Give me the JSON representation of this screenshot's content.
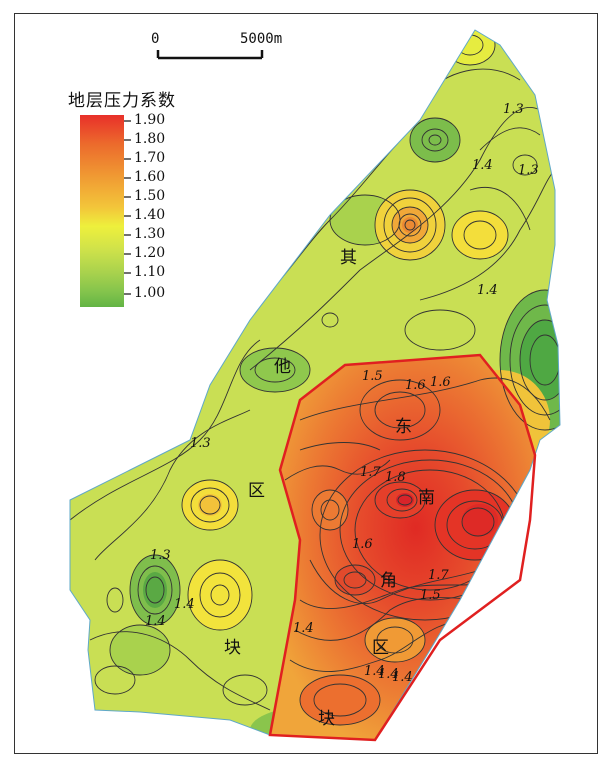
{
  "scale_bar": {
    "start_label": "0",
    "end_label": "5000m"
  },
  "legend": {
    "title": "地层压力系数",
    "ticks": [
      "1.90",
      "1.80",
      "1.70",
      "1.60",
      "1.50",
      "1.40",
      "1.30",
      "1.20",
      "1.10",
      "1.00"
    ],
    "gradient_colors": [
      "#e8302a",
      "#ec6a2c",
      "#f09a33",
      "#f3c53a",
      "#eef03c",
      "#cfe24a",
      "#a9d24d",
      "#84c44c",
      "#62b445"
    ]
  },
  "zones": {
    "other": [
      "其",
      "他",
      "区",
      "块"
    ],
    "southeast": [
      "东",
      "南",
      "角",
      "区",
      "块"
    ]
  },
  "contour_labels": [
    "1.3",
    "1.4",
    "1.3",
    "1.4",
    "1.5",
    "1.6",
    "1.6",
    "1.3",
    "1.7",
    "1.8",
    "1.6",
    "1.7",
    "1.5",
    "1.3",
    "1.4",
    "1.4",
    "1.4",
    "1.4",
    "1.4",
    "1.4"
  ],
  "colors": {
    "boundary": "#e02020",
    "contour": "#333333"
  }
}
